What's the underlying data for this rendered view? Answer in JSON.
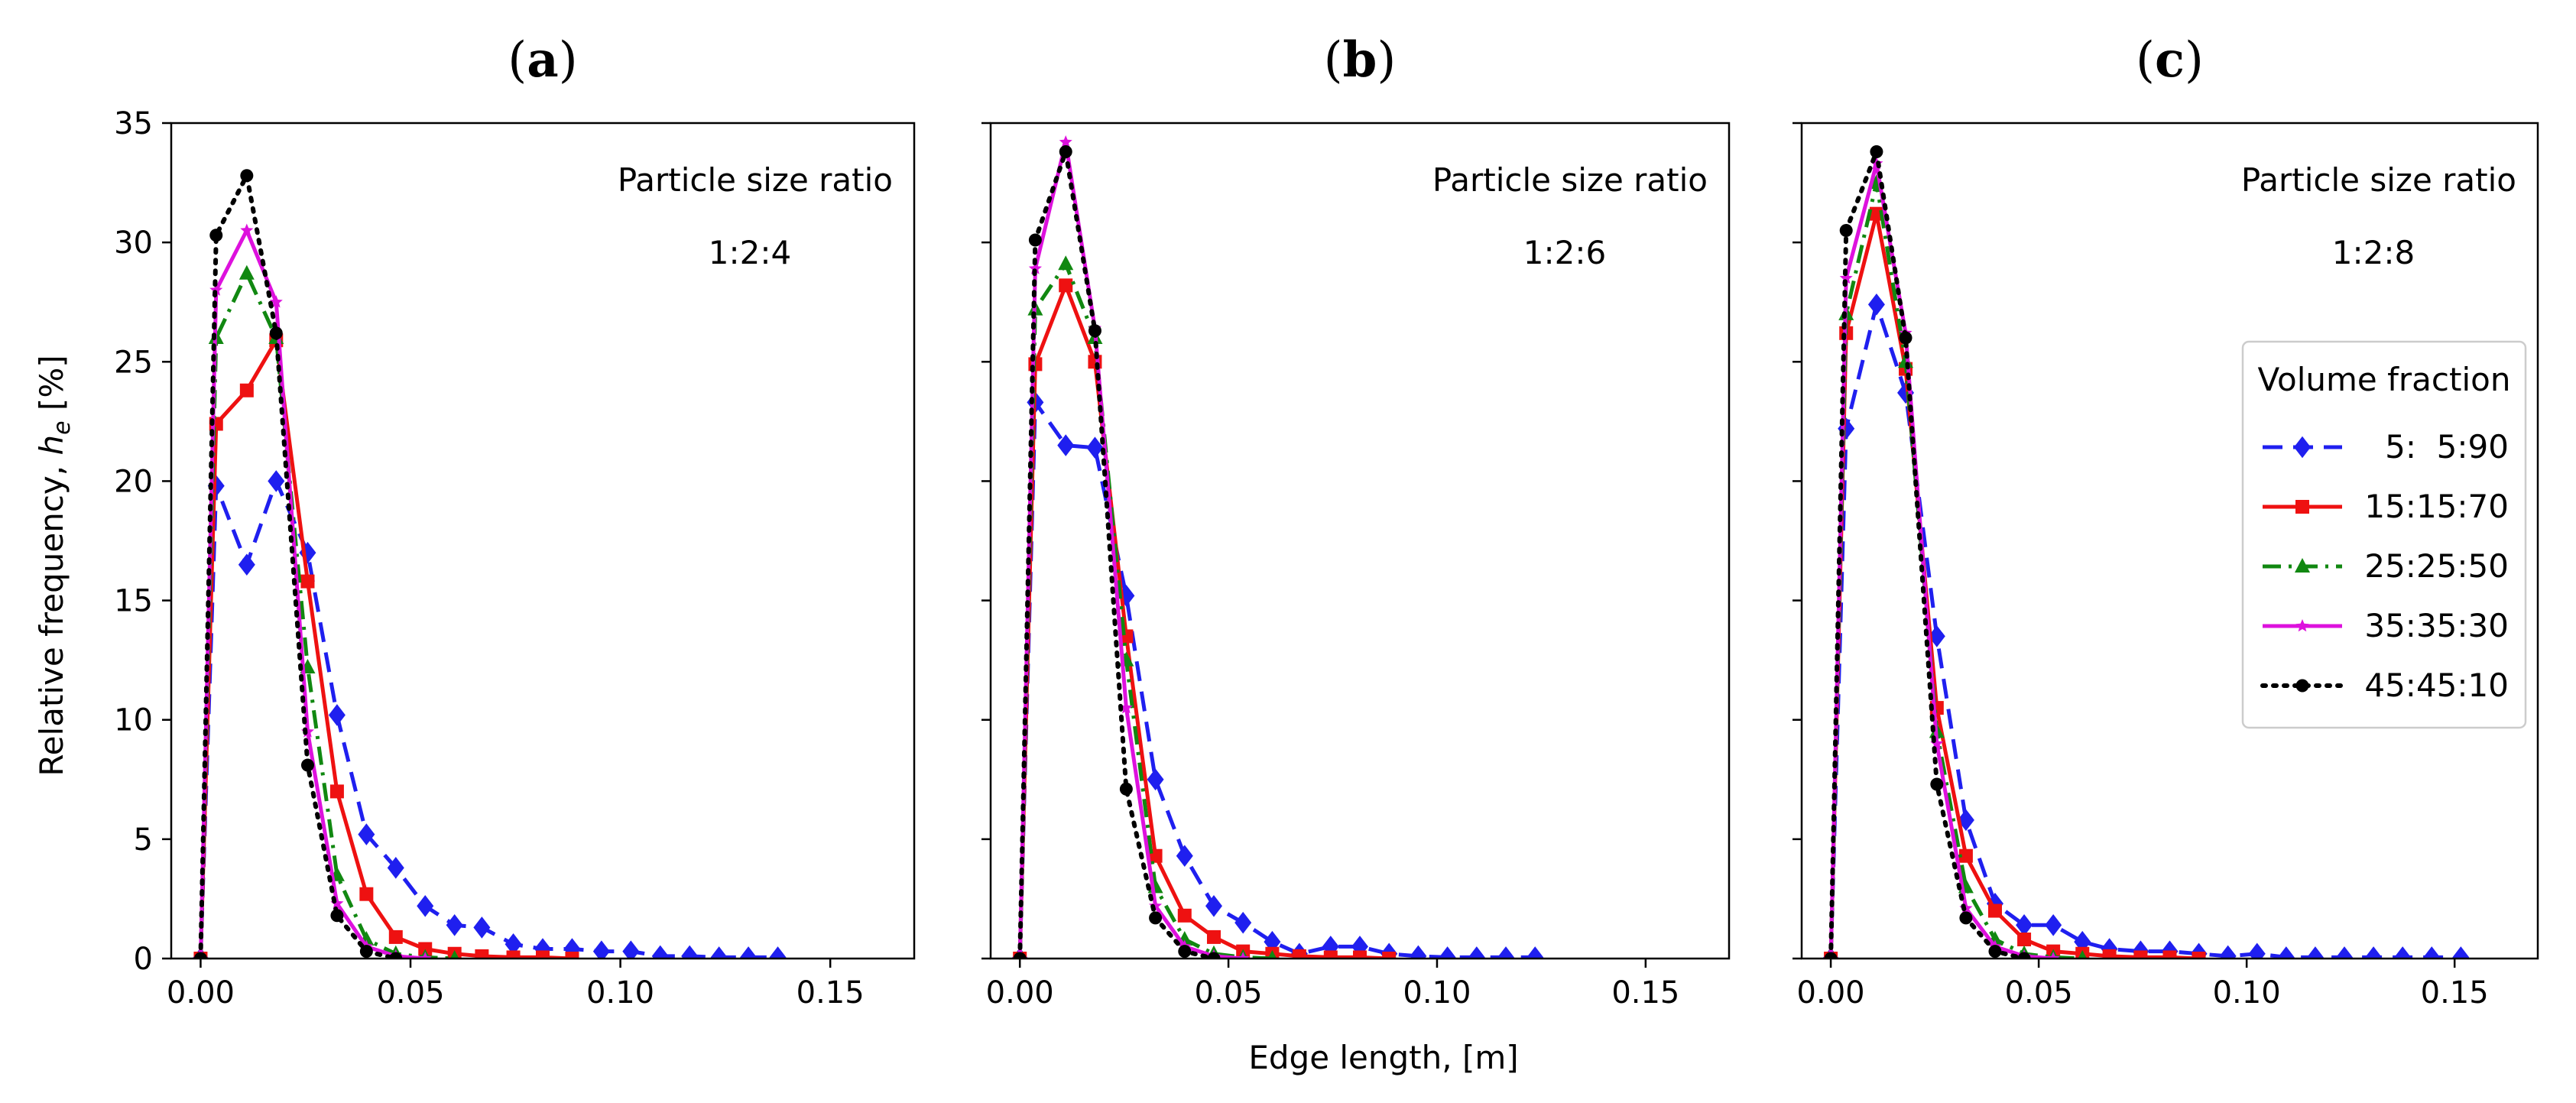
{
  "colors": {
    "blue": "#1f1fef",
    "red": "#ee1111",
    "green": "#118811",
    "magenta": "#dd11dd",
    "black": "#000000"
  },
  "shared": {
    "ylabel": "Relative frequency, h_e [%]",
    "xlabel": "Edge length, [m]",
    "annotation_title": "Particle size ratio",
    "legend_title": "Volume fraction"
  },
  "chart_data": [
    {
      "type": "line",
      "panel_label": "(a)",
      "ratio": "1:2:4",
      "xlim": [
        -0.007,
        0.17
      ],
      "ylim": [
        0,
        35
      ],
      "xticks": [
        0.0,
        0.05,
        0.1,
        0.15
      ],
      "xtick_labels": [
        "0.00",
        "0.05",
        "0.10",
        "0.15"
      ],
      "yticks": [
        0,
        5,
        10,
        15,
        20,
        25,
        30,
        35
      ],
      "ytick_labels": [
        "0",
        "5",
        "10",
        "15",
        "20",
        "25",
        "30",
        "35"
      ],
      "show_yticklabels": true,
      "legend": false,
      "series": [
        {
          "name": "5:  5:90",
          "color": "blue",
          "dash": "dashed",
          "marker": "diamond",
          "x": [
            0,
            0.0037,
            0.011,
            0.018,
            0.0255,
            0.0325,
            0.0395,
            0.0465,
            0.0535,
            0.0605,
            0.067,
            0.0745,
            0.0815,
            0.0885,
            0.0955,
            0.1025,
            0.1095,
            0.1165,
            0.1235,
            0.1305,
            0.1375
          ],
          "y": [
            0,
            19.8,
            16.5,
            20.0,
            17.0,
            10.2,
            5.2,
            3.8,
            2.2,
            1.4,
            1.3,
            0.6,
            0.4,
            0.4,
            0.3,
            0.3,
            0.1,
            0.1,
            0.05,
            0.05,
            0.05
          ]
        },
        {
          "name": "15:15:70",
          "color": "red",
          "dash": "solid",
          "marker": "square",
          "x": [
            0,
            0.0037,
            0.011,
            0.018,
            0.0255,
            0.0325,
            0.0395,
            0.0465,
            0.0535,
            0.0605,
            0.067,
            0.0745,
            0.0815,
            0.0885
          ],
          "y": [
            0,
            22.4,
            23.8,
            25.9,
            15.8,
            7.0,
            2.7,
            0.9,
            0.4,
            0.2,
            0.1,
            0.05,
            0.05,
            0
          ]
        },
        {
          "name": "25:25:50",
          "color": "green",
          "dash": "dashdot",
          "marker": "triangle",
          "x": [
            0,
            0.0037,
            0.011,
            0.018,
            0.0255,
            0.0325,
            0.0395,
            0.0465,
            0.0535,
            0.0605
          ],
          "y": [
            0,
            26.0,
            28.7,
            26.0,
            12.2,
            3.5,
            0.8,
            0.2,
            0.05,
            0
          ]
        },
        {
          "name": "35:35:30",
          "color": "magenta",
          "dash": "solid",
          "marker": "star",
          "x": [
            0,
            0.0037,
            0.011,
            0.018,
            0.0255,
            0.0325,
            0.0395,
            0.0465,
            0.0535
          ],
          "y": [
            0,
            28.0,
            30.5,
            27.5,
            9.5,
            2.3,
            0.5,
            0.1,
            0
          ]
        },
        {
          "name": "45:45:10",
          "color": "black",
          "dash": "dotted",
          "marker": "circle",
          "x": [
            0,
            0.0037,
            0.011,
            0.018,
            0.0255,
            0.0325,
            0.0395,
            0.0465
          ],
          "y": [
            0,
            30.3,
            32.8,
            26.2,
            8.1,
            1.8,
            0.3,
            0
          ]
        }
      ]
    },
    {
      "type": "line",
      "panel_label": "(b)",
      "ratio": "1:2:6",
      "xlim": [
        -0.007,
        0.17
      ],
      "ylim": [
        0,
        35
      ],
      "xticks": [
        0.0,
        0.05,
        0.1,
        0.15
      ],
      "xtick_labels": [
        "0.00",
        "0.05",
        "0.10",
        "0.15"
      ],
      "yticks": [
        0,
        5,
        10,
        15,
        20,
        25,
        30,
        35
      ],
      "ytick_labels": [],
      "show_yticklabels": false,
      "legend": false,
      "series": [
        {
          "name": "5:  5:90",
          "color": "blue",
          "dash": "dashed",
          "marker": "diamond",
          "x": [
            0,
            0.0037,
            0.011,
            0.018,
            0.0255,
            0.0325,
            0.0395,
            0.0465,
            0.0535,
            0.0605,
            0.067,
            0.0745,
            0.0815,
            0.0885,
            0.0955,
            0.1025,
            0.1095,
            0.1165,
            0.1235
          ],
          "y": [
            0,
            23.3,
            21.5,
            21.4,
            15.2,
            7.5,
            4.3,
            2.2,
            1.5,
            0.7,
            0.2,
            0.5,
            0.5,
            0.2,
            0.1,
            0.05,
            0.05,
            0.05,
            0.05
          ]
        },
        {
          "name": "15:15:70",
          "color": "red",
          "dash": "solid",
          "marker": "square",
          "x": [
            0,
            0.0037,
            0.011,
            0.018,
            0.0255,
            0.0325,
            0.0395,
            0.0465,
            0.0535,
            0.0605,
            0.067,
            0.0745,
            0.0815,
            0.0885
          ],
          "y": [
            0,
            24.9,
            28.2,
            25.0,
            13.5,
            4.3,
            1.8,
            0.9,
            0.3,
            0.2,
            0.1,
            0.05,
            0.05,
            0
          ]
        },
        {
          "name": "25:25:50",
          "color": "green",
          "dash": "dashdot",
          "marker": "triangle",
          "x": [
            0,
            0.0037,
            0.011,
            0.018,
            0.0255,
            0.0325,
            0.0395,
            0.0465,
            0.0535,
            0.0605
          ],
          "y": [
            0,
            27.2,
            29.1,
            26.0,
            12.5,
            3.0,
            0.8,
            0.2,
            0.05,
            0
          ]
        },
        {
          "name": "35:35:30",
          "color": "magenta",
          "dash": "solid",
          "marker": "star",
          "x": [
            0,
            0.0037,
            0.011,
            0.018,
            0.0255,
            0.0325,
            0.0395,
            0.0465,
            0.0535
          ],
          "y": [
            0,
            28.9,
            34.2,
            26.4,
            10.5,
            2.2,
            0.5,
            0.1,
            0
          ]
        },
        {
          "name": "45:45:10",
          "color": "black",
          "dash": "dotted",
          "marker": "circle",
          "x": [
            0,
            0.0037,
            0.011,
            0.018,
            0.0255,
            0.0325,
            0.0395,
            0.0465
          ],
          "y": [
            0,
            30.1,
            33.8,
            26.3,
            7.1,
            1.7,
            0.3,
            0
          ]
        }
      ]
    },
    {
      "type": "line",
      "panel_label": "(c)",
      "ratio": "1:2:8",
      "xlim": [
        -0.007,
        0.17
      ],
      "ylim": [
        0,
        35
      ],
      "xticks": [
        0.0,
        0.05,
        0.1,
        0.15
      ],
      "xtick_labels": [
        "0.00",
        "0.05",
        "0.10",
        "0.15"
      ],
      "yticks": [
        0,
        5,
        10,
        15,
        20,
        25,
        30,
        35
      ],
      "ytick_labels": [],
      "show_yticklabels": false,
      "legend": true,
      "series": [
        {
          "name": "5:  5:90",
          "color": "blue",
          "dash": "dashed",
          "marker": "diamond",
          "x": [
            0,
            0.0037,
            0.011,
            0.018,
            0.0255,
            0.0325,
            0.0395,
            0.0465,
            0.0535,
            0.0605,
            0.067,
            0.0745,
            0.0815,
            0.0885,
            0.0955,
            0.1025,
            0.1095,
            0.1165,
            0.1235,
            0.1305,
            0.1375,
            0.1445,
            0.1515
          ],
          "y": [
            0,
            22.2,
            27.4,
            23.7,
            13.5,
            5.8,
            2.3,
            1.4,
            1.4,
            0.7,
            0.4,
            0.3,
            0.3,
            0.2,
            0.1,
            0.2,
            0.05,
            0.05,
            0.05,
            0.05,
            0.05,
            0.05,
            0.05
          ]
        },
        {
          "name": "15:15:70",
          "color": "red",
          "dash": "solid",
          "marker": "square",
          "x": [
            0,
            0.0037,
            0.011,
            0.018,
            0.0255,
            0.0325,
            0.0395,
            0.0465,
            0.0535,
            0.0605,
            0.067,
            0.0745,
            0.0815,
            0.0885
          ],
          "y": [
            0,
            26.2,
            31.2,
            24.7,
            10.5,
            4.3,
            2.0,
            0.8,
            0.3,
            0.2,
            0.1,
            0.05,
            0.05,
            0
          ]
        },
        {
          "name": "25:25:50",
          "color": "green",
          "dash": "dashdot",
          "marker": "triangle",
          "x": [
            0,
            0.0037,
            0.011,
            0.018,
            0.0255,
            0.0325,
            0.0395,
            0.0465,
            0.0535,
            0.0605
          ],
          "y": [
            0,
            27.0,
            32.5,
            25.0,
            9.5,
            3.0,
            0.8,
            0.2,
            0.05,
            0
          ]
        },
        {
          "name": "35:35:30",
          "color": "magenta",
          "dash": "solid",
          "marker": "star",
          "x": [
            0,
            0.0037,
            0.011,
            0.018,
            0.0255,
            0.0325,
            0.0395,
            0.0465,
            0.0535
          ],
          "y": [
            0,
            28.5,
            33.3,
            26.2,
            9.0,
            2.1,
            0.5,
            0.1,
            0
          ]
        },
        {
          "name": "45:45:10",
          "color": "black",
          "dash": "dotted",
          "marker": "circle",
          "x": [
            0,
            0.0037,
            0.011,
            0.018,
            0.0255,
            0.0325,
            0.0395,
            0.0465
          ],
          "y": [
            0,
            30.5,
            33.8,
            26.0,
            7.3,
            1.7,
            0.3,
            0
          ]
        }
      ]
    }
  ]
}
